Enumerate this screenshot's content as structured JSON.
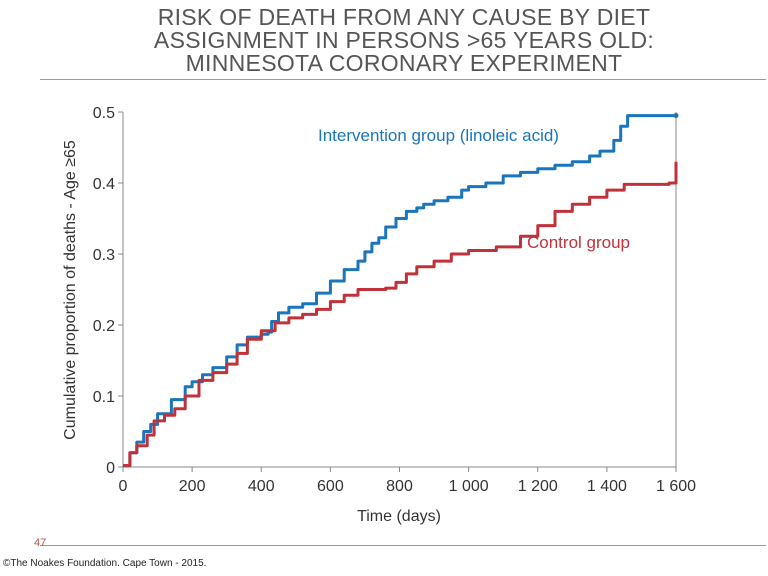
{
  "slide": {
    "title_lines": [
      "RISK OF DEATH FROM ANY CAUSE BY DIET",
      "ASSIGNMENT IN PERSONS >65 YEARS OLD:",
      "MINNESOTA CORONARY EXPERIMENT"
    ],
    "page_number": "47",
    "copyright": "©The Noakes Foundation. Cape Town - 2015."
  },
  "chart_data": {
    "type": "line",
    "title": "",
    "xlabel": "Time (days)",
    "ylabel": "Cumulative proportion of deaths - Age ≥65",
    "xlim": [
      0,
      1600
    ],
    "ylim": [
      0,
      0.5
    ],
    "x_ticks": [
      0,
      200,
      400,
      600,
      800,
      1000,
      1200,
      1400,
      1600
    ],
    "x_tick_labels": [
      "0",
      "200",
      "400",
      "600",
      "800",
      "1 000",
      "1 200",
      "1 400",
      "1 600"
    ],
    "y_ticks": [
      0,
      0.1,
      0.2,
      0.3,
      0.4,
      0.5
    ],
    "y_tick_labels": [
      "0",
      "0.1",
      "0.2",
      "0.3",
      "0.4",
      "0.5"
    ],
    "grid": false,
    "series": [
      {
        "name": "Intervention group (linoleic acid)",
        "color": "#1a75bc",
        "points": [
          [
            0,
            0.002
          ],
          [
            20,
            0.02
          ],
          [
            40,
            0.035
          ],
          [
            60,
            0.05
          ],
          [
            80,
            0.06
          ],
          [
            100,
            0.075
          ],
          [
            140,
            0.095
          ],
          [
            180,
            0.113
          ],
          [
            200,
            0.12
          ],
          [
            230,
            0.13
          ],
          [
            260,
            0.14
          ],
          [
            300,
            0.155
          ],
          [
            330,
            0.172
          ],
          [
            360,
            0.183
          ],
          [
            400,
            0.187
          ],
          [
            420,
            0.19
          ],
          [
            430,
            0.205
          ],
          [
            450,
            0.217
          ],
          [
            480,
            0.225
          ],
          [
            520,
            0.23
          ],
          [
            560,
            0.245
          ],
          [
            600,
            0.262
          ],
          [
            640,
            0.278
          ],
          [
            680,
            0.29
          ],
          [
            700,
            0.303
          ],
          [
            720,
            0.315
          ],
          [
            740,
            0.323
          ],
          [
            760,
            0.338
          ],
          [
            790,
            0.35
          ],
          [
            820,
            0.36
          ],
          [
            850,
            0.365
          ],
          [
            870,
            0.37
          ],
          [
            900,
            0.375
          ],
          [
            940,
            0.38
          ],
          [
            980,
            0.39
          ],
          [
            1000,
            0.395
          ],
          [
            1050,
            0.4
          ],
          [
            1100,
            0.41
          ],
          [
            1150,
            0.415
          ],
          [
            1200,
            0.42
          ],
          [
            1250,
            0.425
          ],
          [
            1300,
            0.43
          ],
          [
            1350,
            0.438
          ],
          [
            1380,
            0.445
          ],
          [
            1420,
            0.46
          ],
          [
            1440,
            0.48
          ],
          [
            1460,
            0.495
          ],
          [
            1600,
            0.495
          ]
        ]
      },
      {
        "name": "Control group",
        "color": "#c0323a",
        "points": [
          [
            0,
            0.002
          ],
          [
            20,
            0.02
          ],
          [
            40,
            0.03
          ],
          [
            70,
            0.045
          ],
          [
            90,
            0.065
          ],
          [
            120,
            0.073
          ],
          [
            150,
            0.082
          ],
          [
            180,
            0.1
          ],
          [
            220,
            0.122
          ],
          [
            260,
            0.133
          ],
          [
            300,
            0.145
          ],
          [
            330,
            0.16
          ],
          [
            360,
            0.18
          ],
          [
            400,
            0.192
          ],
          [
            440,
            0.203
          ],
          [
            480,
            0.21
          ],
          [
            520,
            0.215
          ],
          [
            560,
            0.222
          ],
          [
            600,
            0.233
          ],
          [
            640,
            0.242
          ],
          [
            680,
            0.25
          ],
          [
            760,
            0.252
          ],
          [
            790,
            0.26
          ],
          [
            820,
            0.272
          ],
          [
            850,
            0.282
          ],
          [
            900,
            0.29
          ],
          [
            950,
            0.3
          ],
          [
            1000,
            0.305
          ],
          [
            1080,
            0.31
          ],
          [
            1150,
            0.325
          ],
          [
            1200,
            0.34
          ],
          [
            1250,
            0.36
          ],
          [
            1300,
            0.37
          ],
          [
            1350,
            0.38
          ],
          [
            1400,
            0.39
          ],
          [
            1450,
            0.398
          ],
          [
            1580,
            0.4
          ],
          [
            1600,
            0.43
          ]
        ]
      }
    ],
    "annotations": [
      {
        "text": "Intervention group (linoleic acid)",
        "color": "#1a75bc"
      },
      {
        "text": "Control group",
        "color": "#c0323a"
      }
    ]
  }
}
